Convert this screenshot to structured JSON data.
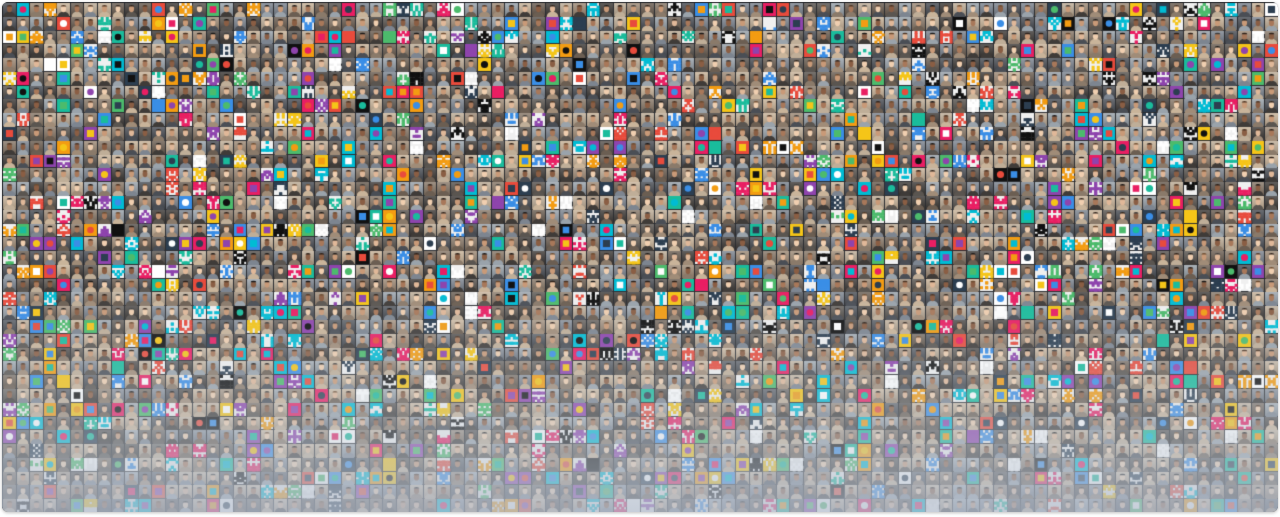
{
  "mosaic": {
    "description_kind": "contributor-avatar-grid",
    "columns": 94,
    "rows": 37,
    "palette": {
      "photo_tones": [
        "#8a7a6a",
        "#6b5e52",
        "#a08c78",
        "#5a5550",
        "#bfae98",
        "#7d8590",
        "#4a4e55",
        "#c9b49a",
        "#9aa3ab",
        "#3f3b38"
      ],
      "logo_accents": [
        "#e84b3c",
        "#3a8ee6",
        "#f5c518",
        "#4cbb6c",
        "#8e44ad",
        "#1abc9c",
        "#f39c12",
        "#e91e63",
        "#2c3e50",
        "#00bcd4",
        "#ffffff",
        "#111111"
      ],
      "background": "#2b2d31",
      "fade_tint": "#b4bece"
    }
  }
}
